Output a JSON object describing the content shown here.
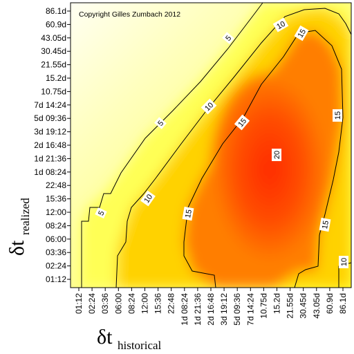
{
  "chart_data": {
    "type": "heatmap",
    "subtype": "filled contour plot",
    "annotation": "Copyright Gilles Zumbach 2012",
    "xlabel": {
      "symbol": "δt",
      "subscript": "historical"
    },
    "ylabel": {
      "symbol": "δt",
      "subscript": "realized"
    },
    "x_ticks": [
      "01:12",
      "02:24",
      "03:36",
      "06:00",
      "08:24",
      "12:00",
      "15:36",
      "22:48",
      "1d 08:24",
      "1d 21:36",
      "2d 16:48",
      "3d 19:12",
      "5d 09:36",
      "7d 14:24",
      "10.75d",
      "15.2d",
      "21.55d",
      "30.45d",
      "43.05d",
      "60.9d",
      "86.1d"
    ],
    "y_ticks": [
      "01:12",
      "02:24",
      "03:36",
      "06:00",
      "08:24",
      "12:00",
      "15:36",
      "22:48",
      "1d 08:24",
      "1d 21:36",
      "2d 16:48",
      "3d 19:12",
      "5d 09:36",
      "7d 14:24",
      "10.75d",
      "15.2d",
      "21.55d",
      "30.45d",
      "43.05d",
      "60.9d",
      "86.1d"
    ],
    "contour_levels": [
      5,
      10,
      15,
      20
    ],
    "colorscale": [
      "#fffff2",
      "#ffff66",
      "#ffdd00",
      "#ff9a00",
      "#ff4a00",
      "#ff2a00"
    ],
    "grid": false,
    "legend": "none"
  }
}
